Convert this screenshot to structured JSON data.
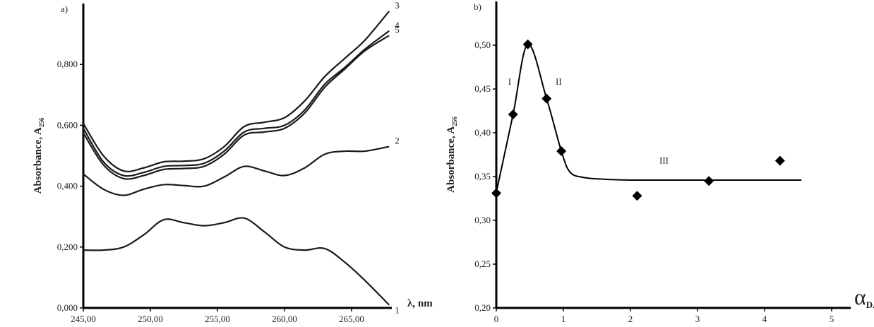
{
  "chart_data": [
    {
      "type": "line",
      "label": "a)",
      "ylabel": "Absorbance, A",
      "ylabel_sub": "256",
      "xlabel": "λ, nm",
      "x": [
        245,
        246.5,
        248,
        249.5,
        251,
        252.5,
        254,
        255.5,
        257,
        258.5,
        260,
        261.5,
        263,
        264.5,
        266,
        267.8
      ],
      "series": [
        {
          "name": "1",
          "color": "#1a1a1a",
          "values": [
            0.19,
            0.19,
            0.2,
            0.24,
            0.29,
            0.28,
            0.27,
            0.28,
            0.295,
            0.25,
            0.2,
            0.19,
            0.195,
            0.15,
            0.09,
            0.01
          ]
        },
        {
          "name": "2",
          "color": "#1a1a1a",
          "values": [
            0.44,
            0.39,
            0.37,
            0.39,
            0.405,
            0.402,
            0.4,
            0.43,
            0.465,
            0.45,
            0.435,
            0.46,
            0.505,
            0.515,
            0.515,
            0.53
          ]
        },
        {
          "name": "3",
          "color": "#1a1a1a",
          "values": [
            0.606,
            0.5,
            0.45,
            0.46,
            0.48,
            0.482,
            0.49,
            0.53,
            0.596,
            0.61,
            0.625,
            0.68,
            0.76,
            0.82,
            0.88,
            0.975
          ]
        },
        {
          "name": "4",
          "color": "#1a1a1a",
          "values": [
            0.59,
            0.48,
            0.435,
            0.445,
            0.465,
            0.468,
            0.475,
            0.515,
            0.578,
            0.59,
            0.6,
            0.65,
            0.735,
            0.79,
            0.85,
            0.91
          ]
        },
        {
          "name": "5",
          "color": "#1a1a1a",
          "values": [
            0.575,
            0.47,
            0.425,
            0.435,
            0.455,
            0.458,
            0.465,
            0.505,
            0.568,
            0.578,
            0.59,
            0.64,
            0.725,
            0.785,
            0.845,
            0.895
          ]
        }
      ],
      "xlim": [
        245,
        268
      ],
      "ylim": [
        0,
        1.0
      ],
      "xticks": [
        {
          "value": 245,
          "label": "245,00"
        },
        {
          "value": 250,
          "label": "250,00"
        },
        {
          "value": 255,
          "label": "255,00"
        },
        {
          "value": 260,
          "label": "260,00"
        },
        {
          "value": 265,
          "label": "265,00"
        }
      ],
      "yticks": [
        {
          "value": 0,
          "label": "0,000"
        },
        {
          "value": 0.2,
          "label": "0,200"
        },
        {
          "value": 0.4,
          "label": "0,400"
        },
        {
          "value": 0.6,
          "label": "0,600"
        },
        {
          "value": 0.8,
          "label": "0,800"
        }
      ]
    },
    {
      "type": "scatter",
      "label": "b)",
      "ylabel": "Absorbance, A",
      "ylabel_sub": "256",
      "xlabel": "α",
      "xlabel_sub": "DA",
      "series": [
        {
          "color": "#000000",
          "x": [
            0,
            0.25,
            0.47,
            0.75,
            0.97,
            2.1,
            3.17,
            4.23
          ],
          "values": [
            0.331,
            0.421,
            0.501,
            0.439,
            0.379,
            0.328,
            0.345,
            0.368
          ]
        }
      ],
      "fit": {
        "color": "#000000",
        "x": [
          0,
          0.25,
          0.47,
          0.75,
          0.97,
          1.1,
          1.3,
          1.6,
          2,
          3,
          4,
          4.55
        ],
        "values": [
          0.332,
          0.421,
          0.501,
          0.439,
          0.379,
          0.355,
          0.349,
          0.347,
          0.346,
          0.346,
          0.346,
          0.346
        ]
      },
      "annotations": [
        "I",
        "II",
        "III"
      ],
      "xlim": [
        0,
        5
      ],
      "ylim": [
        0.2,
        0.55
      ],
      "xticks": [
        0,
        1,
        2,
        3,
        4,
        5
      ],
      "yticks": [
        {
          "value": 0.2,
          "label": "0,20"
        },
        {
          "value": 0.25,
          "label": "0,25"
        },
        {
          "value": 0.3,
          "label": "0,30"
        },
        {
          "value": 0.35,
          "label": "0,35"
        },
        {
          "value": 0.4,
          "label": "0,40"
        },
        {
          "value": 0.45,
          "label": "0,45"
        },
        {
          "value": 0.5,
          "label": "0,50"
        }
      ]
    }
  ]
}
